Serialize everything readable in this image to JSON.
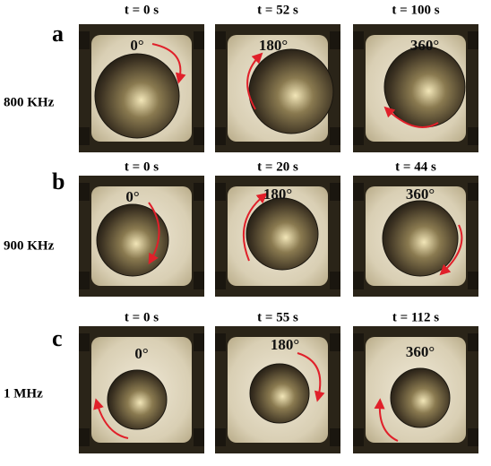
{
  "rows": [
    {
      "label": "a",
      "frequency": "800 KHz",
      "panels": [
        {
          "time": "t = 0 s",
          "angle": "0°"
        },
        {
          "time": "t = 52 s",
          "angle": "180°"
        },
        {
          "time": "t = 100 s",
          "angle": "360°"
        }
      ]
    },
    {
      "label": "b",
      "frequency": "900 KHz",
      "panels": [
        {
          "time": "t = 0 s",
          "angle": "0°"
        },
        {
          "time": "t = 20 s",
          "angle": "180°"
        },
        {
          "time": "t = 44 s",
          "angle": "360°"
        }
      ]
    },
    {
      "label": "c",
      "frequency": "1 MHz",
      "panels": [
        {
          "time": "t = 0 s",
          "angle": "0°"
        },
        {
          "time": "t = 55 s",
          "angle": "180°"
        },
        {
          "time": "t = 112 s",
          "angle": "360°"
        }
      ]
    }
  ]
}
